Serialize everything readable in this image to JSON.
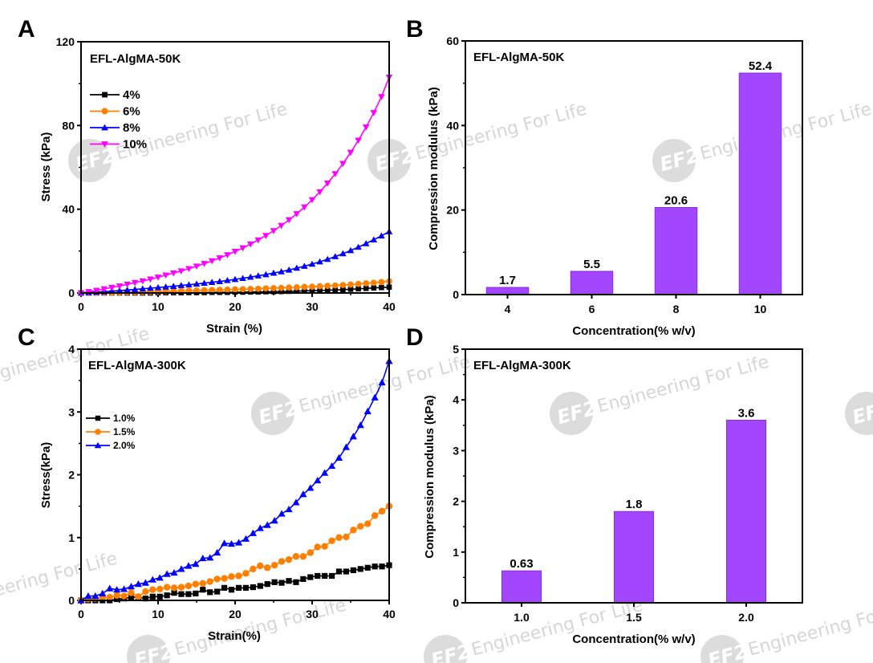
{
  "watermark": {
    "text": "Engineering For Life",
    "logo": "EF2"
  },
  "colors": {
    "black_series": "#000000",
    "orange_series": "#ff8000",
    "blue_series": "#0000ff",
    "magenta_series": "#ff00ff",
    "bar_fill": "#a347ff",
    "bar_edge": "#8b2be2",
    "watermark": "#d6d6d6"
  },
  "chart_data": [
    {
      "panel": "A",
      "type": "line",
      "annotation": "EFL-AlgMA-50K",
      "xlabel": "Strain (%)",
      "ylabel": "Stress (kPa)",
      "xlim": [
        0,
        40
      ],
      "ylim": [
        0,
        120
      ],
      "xticks": [
        0,
        10,
        20,
        30,
        40
      ],
      "yticks": [
        0,
        40,
        80,
        120
      ],
      "legend_position": "upper-left",
      "x": [
        0,
        1,
        2,
        3,
        4,
        5,
        6,
        7,
        8,
        9,
        10,
        11,
        12,
        13,
        14,
        15,
        16,
        17,
        18,
        19,
        20,
        21,
        22,
        23,
        24,
        25,
        26,
        27,
        28,
        29,
        30,
        31,
        32,
        33,
        34,
        35,
        36,
        37,
        38,
        39,
        40
      ],
      "series": [
        {
          "name": "4%",
          "marker": "square",
          "color": "#000000",
          "values": [
            0,
            0,
            0,
            0,
            0,
            0,
            0,
            0,
            0,
            0,
            0.1,
            0.1,
            0.1,
            0.1,
            0.2,
            0.2,
            0.2,
            0.3,
            0.3,
            0.3,
            0.4,
            0.4,
            0.5,
            0.5,
            0.6,
            0.6,
            0.7,
            0.8,
            0.9,
            1.0,
            1.1,
            1.2,
            1.3,
            1.4,
            1.6,
            1.8,
            2.0,
            2.2,
            2.4,
            2.6,
            2.8
          ]
        },
        {
          "name": "6%",
          "marker": "circle",
          "color": "#ff8000",
          "values": [
            0,
            0.1,
            0.1,
            0.2,
            0.2,
            0.3,
            0.4,
            0.4,
            0.5,
            0.6,
            0.7,
            0.8,
            0.9,
            1.0,
            1.1,
            1.2,
            1.3,
            1.4,
            1.5,
            1.6,
            1.7,
            1.8,
            1.9,
            2.0,
            2.2,
            2.3,
            2.4,
            2.6,
            2.7,
            2.9,
            3.0,
            3.2,
            3.4,
            3.6,
            3.8,
            4.0,
            4.3,
            4.6,
            4.9,
            5.2,
            5.6
          ]
        },
        {
          "name": "8%",
          "marker": "triangle-up",
          "color": "#0000ff",
          "values": [
            0,
            0.2,
            0.4,
            0.6,
            0.9,
            1.1,
            1.4,
            1.7,
            2.0,
            2.3,
            2.6,
            2.9,
            3.2,
            3.6,
            3.9,
            4.3,
            4.7,
            5.1,
            5.5,
            6.0,
            6.5,
            7.0,
            7.6,
            8.2,
            8.8,
            9.5,
            10.2,
            11.0,
            11.9,
            12.8,
            13.8,
            14.9,
            16.1,
            17.4,
            18.8,
            20.3,
            21.9,
            23.6,
            25.4,
            27.3,
            29.3
          ]
        },
        {
          "name": "10%",
          "marker": "triangle-down",
          "color": "#ff00ff",
          "values": [
            0,
            0.6,
            1.2,
            1.9,
            2.6,
            3.3,
            4.1,
            4.9,
            5.7,
            6.6,
            7.5,
            8.5,
            9.5,
            10.5,
            11.6,
            12.8,
            14.0,
            15.3,
            16.7,
            18.2,
            19.8,
            21.5,
            23.3,
            25.3,
            27.4,
            29.7,
            32.2,
            34.9,
            37.8,
            41.0,
            44.5,
            48.3,
            52.4,
            56.9,
            61.8,
            67.1,
            72.9,
            79.2,
            86.1,
            93.7,
            103
          ]
        }
      ]
    },
    {
      "panel": "B",
      "type": "bar",
      "annotation": "EFL-AlgMA-50K",
      "xlabel": "Concentration(% w/v)",
      "ylabel": "Compression modulus (kPa)",
      "categories": [
        "4",
        "6",
        "8",
        "10"
      ],
      "values": [
        1.7,
        5.5,
        20.6,
        52.4
      ],
      "data_labels": [
        "1.7",
        "5.5",
        "20.6",
        "52.4"
      ],
      "ylim": [
        0,
        60
      ],
      "yticks": [
        0,
        20,
        40,
        60
      ]
    },
    {
      "panel": "C",
      "type": "line",
      "annotation": "EFL-AlgMA-300K",
      "xlabel": "Strain(%)",
      "ylabel": "Stress(kPa)",
      "xlim": [
        0,
        40
      ],
      "ylim": [
        0,
        4
      ],
      "xticks": [
        0,
        10,
        20,
        30,
        40
      ],
      "yticks": [
        0,
        1,
        2,
        3,
        4
      ],
      "legend_position": "upper-left",
      "x": [
        0,
        0.93,
        1.86,
        2.79,
        3.72,
        4.65,
        5.58,
        6.51,
        7.44,
        8.37,
        9.3,
        10.23,
        11.16,
        12.09,
        13.02,
        13.95,
        14.88,
        15.81,
        16.74,
        17.67,
        18.6,
        19.53,
        20.47,
        21.4,
        22.33,
        23.26,
        24.19,
        25.12,
        26.05,
        26.98,
        27.91,
        28.84,
        29.77,
        30.7,
        31.63,
        32.56,
        33.49,
        34.42,
        35.35,
        36.28,
        37.21,
        38.14,
        39.07,
        40
      ],
      "series": [
        {
          "name": "1.0%",
          "marker": "square",
          "color": "#000000",
          "values": [
            0,
            0,
            0,
            0,
            0,
            0.02,
            0.03,
            0.05,
            0.05,
            0.03,
            0.06,
            0.06,
            0.08,
            0.12,
            0.1,
            0.1,
            0.11,
            0.17,
            0.13,
            0.14,
            0.2,
            0.17,
            0.2,
            0.2,
            0.21,
            0.23,
            0.26,
            0.29,
            0.28,
            0.31,
            0.29,
            0.34,
            0.37,
            0.39,
            0.39,
            0.39,
            0.46,
            0.46,
            0.48,
            0.5,
            0.52,
            0.54,
            0.54,
            0.56
          ]
        },
        {
          "name": "1.5%",
          "marker": "circle",
          "color": "#ff8000",
          "values": [
            0,
            0.02,
            0.03,
            0.04,
            0.05,
            0.08,
            0.07,
            0.12,
            0.06,
            0.14,
            0.17,
            0.18,
            0.21,
            0.2,
            0.21,
            0.23,
            0.26,
            0.27,
            0.3,
            0.34,
            0.35,
            0.38,
            0.39,
            0.43,
            0.5,
            0.55,
            0.52,
            0.56,
            0.62,
            0.65,
            0.7,
            0.7,
            0.76,
            0.85,
            0.86,
            0.95,
            1.0,
            1.01,
            1.12,
            1.18,
            1.22,
            1.35,
            1.42,
            1.5
          ]
        },
        {
          "name": "2.0%",
          "marker": "triangle-up",
          "color": "#0000ff",
          "values": [
            0,
            0.07,
            0.07,
            0.11,
            0.19,
            0.17,
            0.18,
            0.22,
            0.26,
            0.28,
            0.33,
            0.36,
            0.42,
            0.44,
            0.5,
            0.55,
            0.58,
            0.67,
            0.68,
            0.76,
            0.91,
            0.9,
            0.92,
            0.98,
            1.07,
            1.15,
            1.2,
            1.27,
            1.38,
            1.45,
            1.56,
            1.69,
            1.79,
            1.91,
            2.03,
            2.14,
            2.27,
            2.44,
            2.61,
            2.79,
            3.01,
            3.23,
            3.47,
            3.81
          ]
        }
      ]
    },
    {
      "panel": "D",
      "type": "bar",
      "annotation": "EFL-AlgMA-300K",
      "xlabel": "Concentration(% w/v)",
      "ylabel": "Compression modulus (kPa)",
      "categories": [
        "1.0",
        "1.5",
        "2.0"
      ],
      "values": [
        0.63,
        1.8,
        3.6
      ],
      "data_labels": [
        "0.63",
        "1.8",
        "3.6"
      ],
      "ylim": [
        0,
        5
      ],
      "yticks": [
        0,
        1,
        2,
        3,
        4,
        5
      ]
    }
  ],
  "panels": {
    "A": {
      "letter": "A"
    },
    "B": {
      "letter": "B"
    },
    "C": {
      "letter": "C"
    },
    "D": {
      "letter": "D"
    }
  }
}
